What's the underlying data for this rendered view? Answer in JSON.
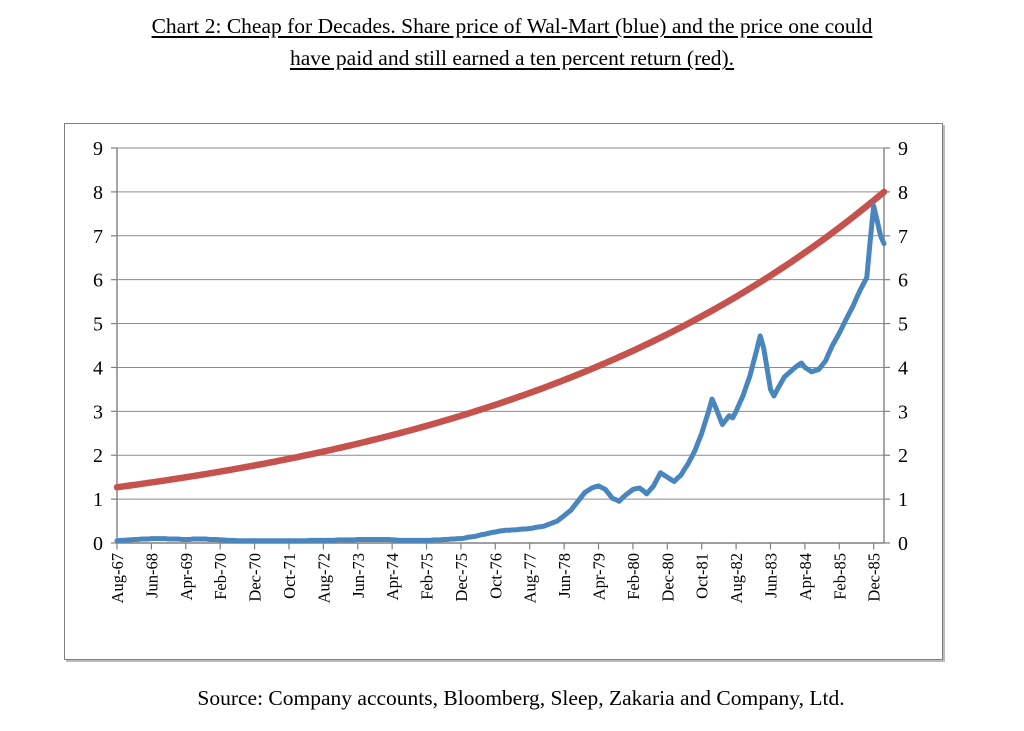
{
  "title": {
    "full_text": "Chart 2: Cheap for Decades. Share price of Wal-Mart (blue) and the price one could have paid and still earned a ten percent return (red).",
    "lines": [
      "Chart 2: Cheap for Decades. Share price of Wal-Mart (blue) and the price one could",
      "have paid and still earned a ten percent return (red)."
    ]
  },
  "source": {
    "text": "Source: Company accounts, Bloomberg, Sleep, Zakaria and Company, Ltd."
  },
  "colors": {
    "walmart_line": "#4A86BE",
    "ten_percent_line": "#C6524E",
    "gridline": "#8C8C8C",
    "axis": "#808080",
    "border": "#7F7F7F",
    "background": "#FFFFFF",
    "label_text": "#000000"
  },
  "chart_data": {
    "type": "line",
    "title": "Chart 2: Cheap for Decades. Share price of Wal-Mart (blue) and the price one could have paid and still earned a ten percent return (red).",
    "xlabel": "",
    "ylabel": "",
    "ylim": [
      0,
      9
    ],
    "y_ticks": [
      0,
      1,
      2,
      3,
      4,
      5,
      6,
      7,
      8,
      9
    ],
    "y_axis_labels_both_sides": true,
    "grid": "horizontal",
    "legend_position": "none",
    "x_unit": "monthly from Aug-67",
    "n_points": 224,
    "x_tick_interval_months": 10,
    "x_tick_labels": [
      "Aug-67",
      "Jun-68",
      "Apr-69",
      "Feb-70",
      "Dec-70",
      "Oct-71",
      "Aug-72",
      "Jun-73",
      "Apr-74",
      "Feb-75",
      "Dec-75",
      "Oct-76",
      "Aug-77",
      "Jun-78",
      "Apr-79",
      "Feb-80",
      "Dec-80",
      "Oct-81",
      "Aug-82",
      "Jun-83",
      "Apr-84",
      "Feb-85",
      "Dec-85"
    ],
    "series": [
      {
        "id": "ten-percent-return-line",
        "name": "Price one could have paid and still earned a ten percent return (red)",
        "color": "#C6524E",
        "stroke_width": 6.5,
        "curve": "exponential",
        "start": 1.27,
        "end": 8.0,
        "values_at_ticks": [
          1.27,
          1.38,
          1.5,
          1.63,
          1.77,
          1.92,
          2.08,
          2.26,
          2.46,
          2.67,
          2.9,
          3.15,
          3.42,
          3.71,
          4.03,
          4.38,
          4.76,
          5.17,
          5.61,
          6.09,
          6.62,
          7.19,
          7.8
        ]
      },
      {
        "id": "walmart-share-price-line",
        "name": "Share price of Wal-Mart (blue)",
        "color": "#4A86BE",
        "stroke_width": 5,
        "values": [
          0.05,
          0.06,
          0.06,
          0.07,
          0.07,
          0.08,
          0.08,
          0.09,
          0.09,
          0.09,
          0.1,
          0.1,
          0.1,
          0.1,
          0.1,
          0.09,
          0.09,
          0.09,
          0.09,
          0.08,
          0.08,
          0.08,
          0.09,
          0.09,
          0.09,
          0.09,
          0.09,
          0.08,
          0.08,
          0.08,
          0.07,
          0.07,
          0.06,
          0.06,
          0.06,
          0.05,
          0.05,
          0.05,
          0.05,
          0.05,
          0.05,
          0.05,
          0.05,
          0.05,
          0.05,
          0.05,
          0.05,
          0.05,
          0.05,
          0.05,
          0.05,
          0.05,
          0.05,
          0.05,
          0.05,
          0.05,
          0.06,
          0.06,
          0.06,
          0.06,
          0.06,
          0.06,
          0.06,
          0.06,
          0.07,
          0.07,
          0.07,
          0.07,
          0.07,
          0.07,
          0.08,
          0.08,
          0.08,
          0.08,
          0.08,
          0.08,
          0.08,
          0.08,
          0.08,
          0.08,
          0.07,
          0.07,
          0.06,
          0.06,
          0.06,
          0.06,
          0.06,
          0.06,
          0.06,
          0.06,
          0.06,
          0.06,
          0.07,
          0.07,
          0.07,
          0.08,
          0.08,
          0.09,
          0.09,
          0.1,
          0.1,
          0.11,
          0.13,
          0.14,
          0.15,
          0.17,
          0.19,
          0.2,
          0.22,
          0.24,
          0.25,
          0.27,
          0.28,
          0.29,
          0.29,
          0.3,
          0.3,
          0.31,
          0.32,
          0.32,
          0.33,
          0.34,
          0.36,
          0.37,
          0.38,
          0.41,
          0.44,
          0.47,
          0.5,
          0.56,
          0.62,
          0.69,
          0.75,
          0.85,
          0.95,
          1.05,
          1.15,
          1.2,
          1.25,
          1.28,
          1.3,
          1.26,
          1.22,
          1.12,
          1.02,
          0.99,
          0.95,
          1.03,
          1.1,
          1.16,
          1.22,
          1.24,
          1.25,
          1.19,
          1.12,
          1.21,
          1.3,
          1.45,
          1.6,
          1.55,
          1.5,
          1.45,
          1.4,
          1.48,
          1.55,
          1.68,
          1.8,
          1.95,
          2.1,
          2.3,
          2.5,
          2.75,
          3.0,
          3.28,
          3.1,
          2.9,
          2.7,
          2.8,
          2.9,
          2.85,
          3.0,
          3.18,
          3.35,
          3.58,
          3.8,
          4.1,
          4.4,
          4.72,
          4.45,
          3.98,
          3.5,
          3.35,
          3.5,
          3.64,
          3.78,
          3.85,
          3.92,
          3.99,
          4.05,
          4.1,
          4.0,
          3.95,
          3.9,
          3.93,
          3.95,
          4.05,
          4.15,
          4.33,
          4.5,
          4.64,
          4.78,
          4.94,
          5.1,
          5.25,
          5.4,
          5.58,
          5.75,
          5.9,
          6.05,
          6.9,
          7.68,
          7.35,
          7.0,
          6.82
        ]
      }
    ]
  }
}
